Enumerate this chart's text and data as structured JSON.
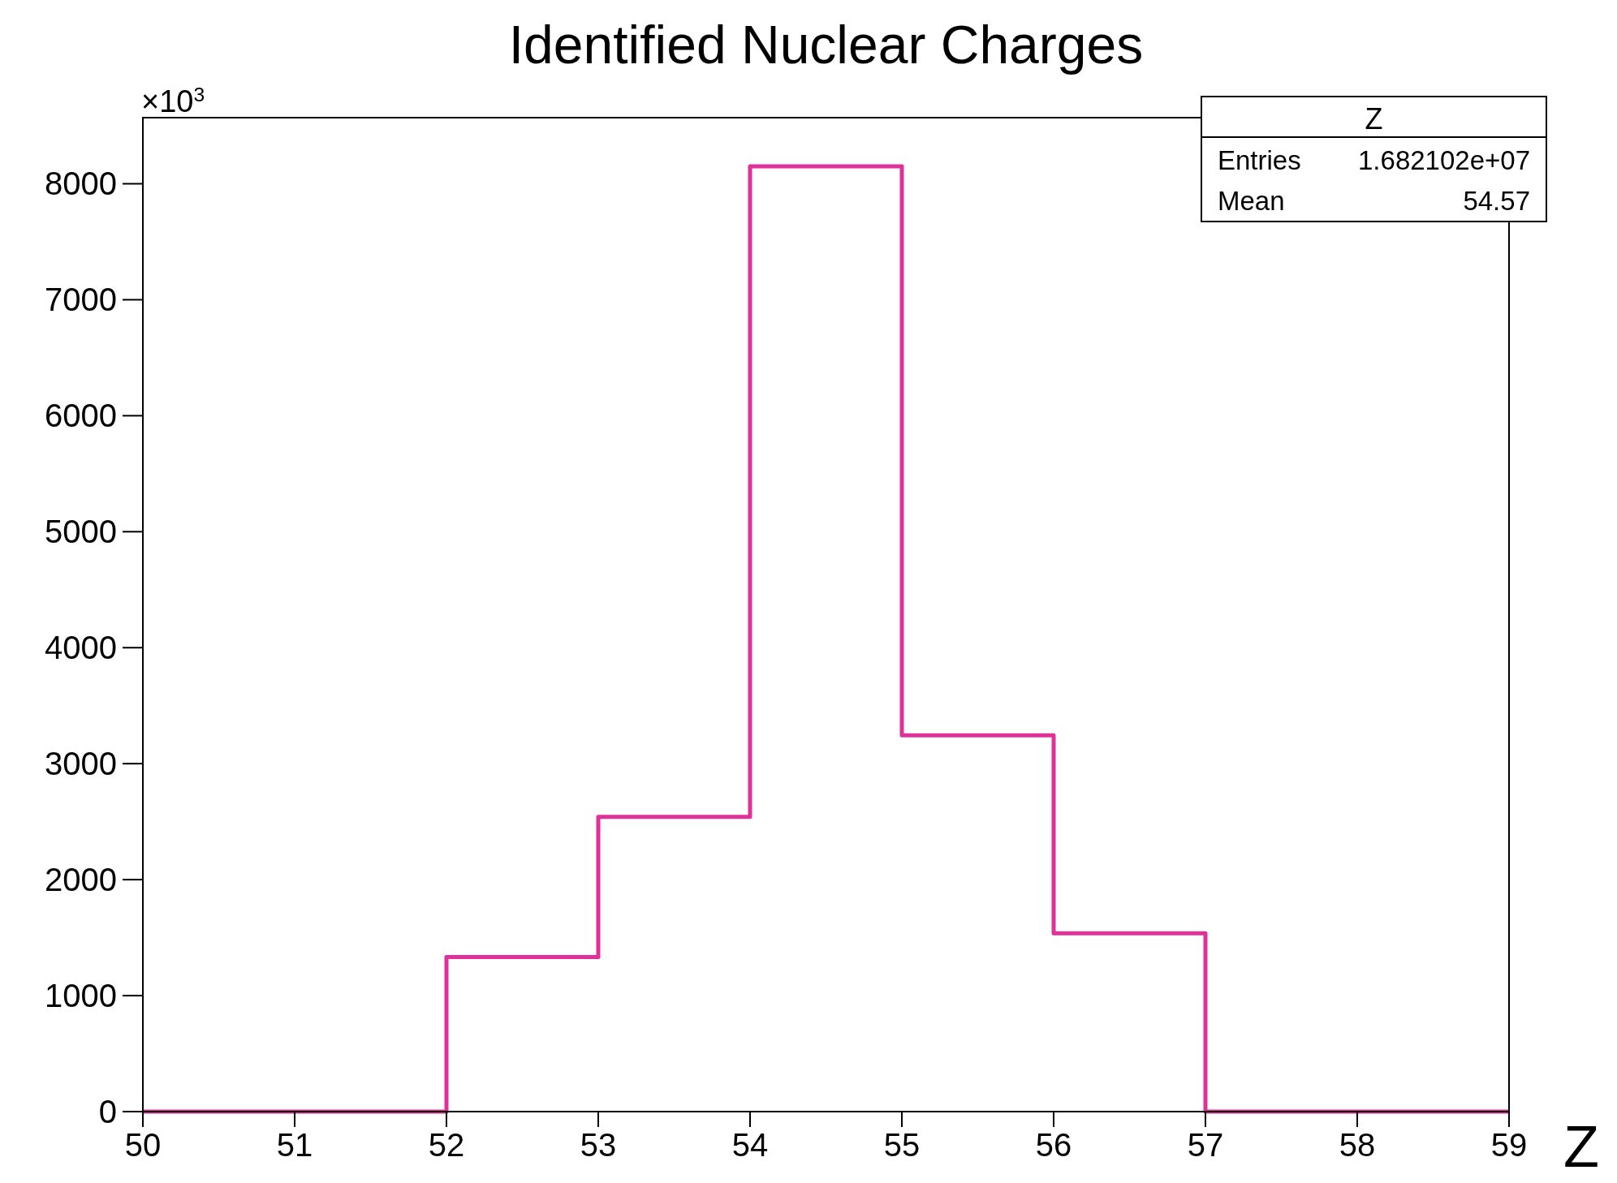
{
  "chart_data": {
    "type": "histogram",
    "title": "Identified Nuclear Charges",
    "xlabel": "Z",
    "bins": [
      50,
      51,
      52,
      53,
      54,
      55,
      56,
      57,
      58,
      59
    ],
    "values": [
      0,
      0,
      1333,
      2542,
      8151,
      3244,
      1538,
      0,
      0
    ],
    "color": "#e0309a",
    "xlim": [
      50,
      59
    ],
    "ylim": [
      0,
      8570
    ],
    "xticks": [
      50,
      51,
      52,
      53,
      54,
      55,
      56,
      57,
      58,
      59
    ],
    "yticks": [
      0,
      1000,
      2000,
      3000,
      4000,
      5000,
      6000,
      7000,
      8000
    ],
    "grid": false,
    "annotations": [
      "×10$^{3}$",
      "Z",
      "Entries",
      "1.682102e+07",
      "Mean",
      "54.57"
    ]
  }
}
